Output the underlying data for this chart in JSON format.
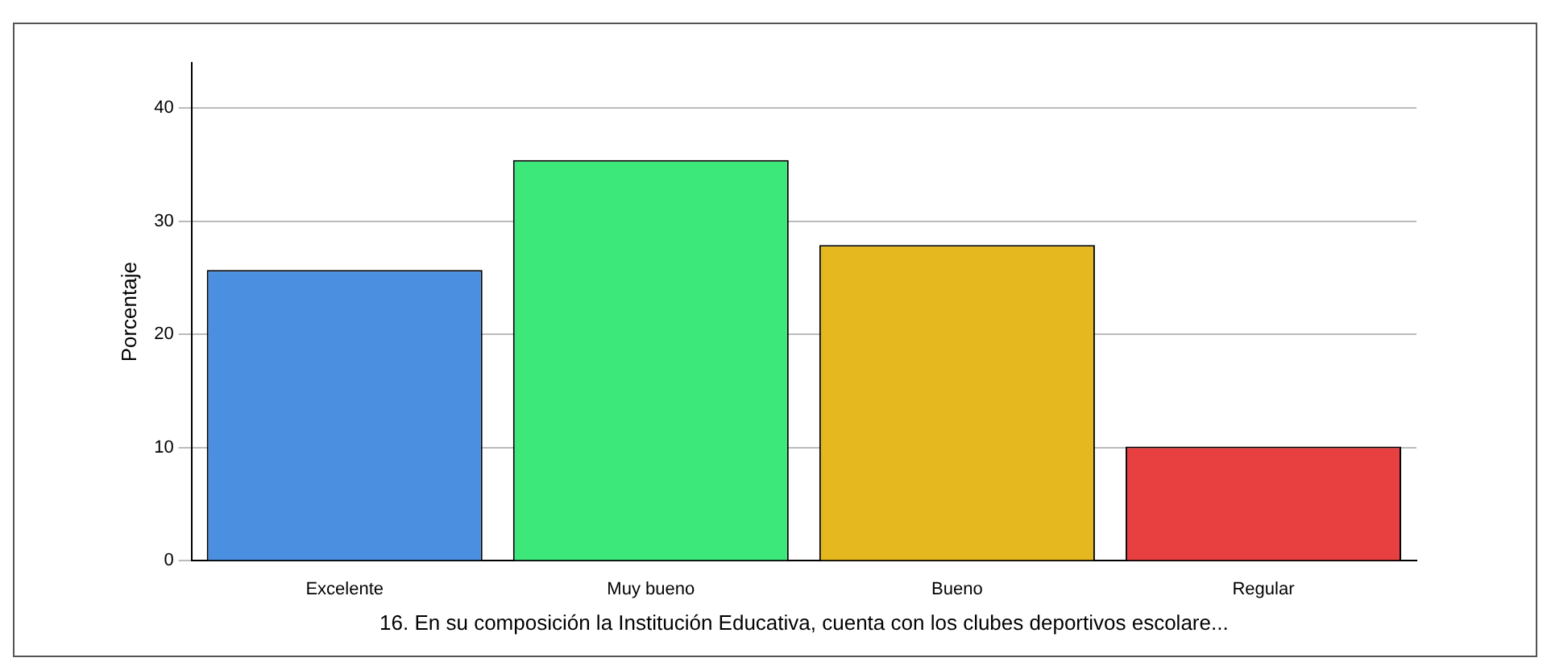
{
  "chart_data": {
    "type": "bar",
    "xlabel": "16. En su composición la Institución Educativa, cuenta con los clubes deportivos escolare...",
    "ylabel": "Porcentaje",
    "categories": [
      "Excelente",
      "Muy bueno",
      "Bueno",
      "Regular"
    ],
    "values": [
      25.7,
      35.4,
      27.9,
      10.1
    ],
    "colors": [
      "#4a8fe0",
      "#3de87a",
      "#e6b820",
      "#e84040"
    ],
    "ylim": [
      0,
      44
    ],
    "yticks": [
      0,
      10,
      20,
      30,
      40
    ],
    "grid": "y",
    "legend": false
  }
}
